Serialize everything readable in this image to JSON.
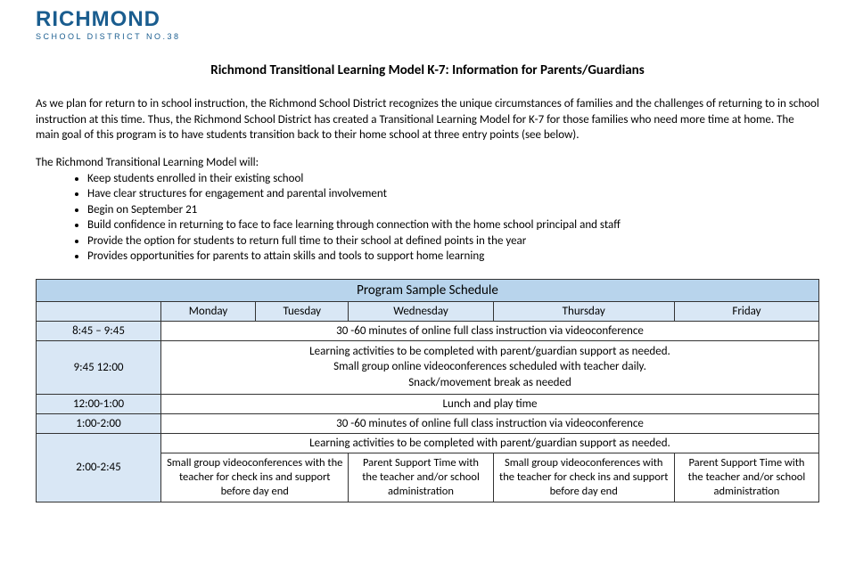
{
  "logo": {
    "main": "RICHMOND",
    "sub": "SCHOOL DISTRICT NO.38"
  },
  "title": "Richmond Transitional Learning Model K-7: Information for Parents/Guardians",
  "intro": "As we plan for return to in school instruction, the Richmond School District recognizes the unique circumstances of families and the challenges of returning to in school instruction at this time. Thus, the Richmond School District has created a Transitional Learning Model for K-7 for those families who need more time at home. The main goal of this program is to have students transition back to their home school at three entry points (see below).",
  "lead": "The Richmond Transitional Learning Model will:",
  "bullets": [
    "Keep students enrolled in their existing school",
    "Have clear structures for engagement and parental involvement",
    "Begin on September 21",
    "Build confidence in returning to face to face learning through connection with the home school principal and staff",
    "Provide the option for students to return full time to their school at defined points in the year",
    "Provides opportunities for parents to attain skills and tools to support home learning"
  ],
  "schedule": {
    "header": "Program Sample Schedule",
    "days": [
      "Monday",
      "Tuesday",
      "Wednesday",
      "Thursday",
      "Friday"
    ],
    "rows": {
      "r1": {
        "time": "8:45 – 9:45",
        "content": "30 -60 minutes of online full class instruction via videoconference"
      },
      "r2": {
        "time": "9:45 12:00",
        "line1": "Learning activities to be completed with parent/guardian support as needed.",
        "line2": "Small group online videoconferences scheduled with teacher daily.",
        "line3": "Snack/movement break as needed"
      },
      "r3": {
        "time": "12:00-1:00",
        "content": "Lunch and play time"
      },
      "r4": {
        "time": "1:00-2:00",
        "content": "30 -60 minutes of online full class instruction via videoconference"
      },
      "r5": {
        "content": "Learning activities to be completed with parent/guardian support as needed."
      },
      "r6": {
        "time": "2:00-2:45",
        "c1": "Small group videoconferences with the teacher for check ins and support before day end",
        "c2": "Parent Support Time with the teacher and/or school administration",
        "c3": "Small group videoconferences with the teacher for check ins and support before day end",
        "c4": "Parent Support Time with the teacher and/or school administration"
      }
    }
  }
}
